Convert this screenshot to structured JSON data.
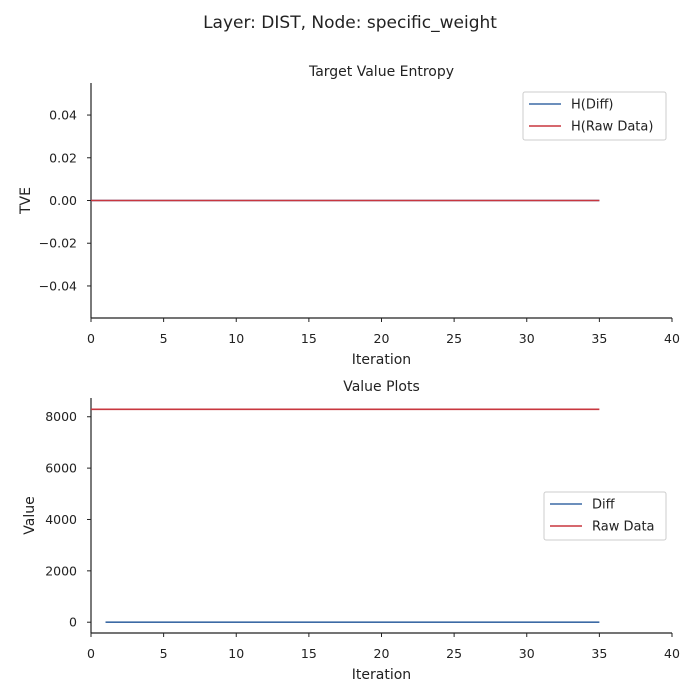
{
  "figure": {
    "suptitle": "Layer: DIST, Node: specific_weight"
  },
  "colors": {
    "diff": "#3c6aa5",
    "raw": "#c8373f",
    "axis": "#222222",
    "legend_border": "#cccccc"
  },
  "chart_data": [
    {
      "type": "line",
      "title": "Target Value Entropy",
      "xlabel": "Iteration",
      "ylabel": "TVE",
      "xlim": [
        0,
        40
      ],
      "ylim": [
        -0.055,
        0.055
      ],
      "xticks": [
        0,
        5,
        10,
        15,
        20,
        25,
        30,
        35,
        40
      ],
      "yticks": [
        -0.04,
        -0.02,
        0.0,
        0.02,
        0.04
      ],
      "ytick_labels": [
        "−0.04",
        "−0.02",
        "0.00",
        "0.02",
        "0.04"
      ],
      "grid": false,
      "legend": "top-right",
      "series": [
        {
          "name": "H(Diff)",
          "color_key": "diff",
          "x": [
            0,
            35
          ],
          "y": [
            0.0,
            0.0
          ]
        },
        {
          "name": "H(Raw Data)",
          "color_key": "raw",
          "x": [
            0,
            35
          ],
          "y": [
            0.0,
            0.0
          ]
        }
      ]
    },
    {
      "type": "line",
      "title": "Value Plots",
      "xlabel": "Iteration",
      "ylabel": "Value",
      "xlim": [
        0,
        40
      ],
      "ylim": [
        -420,
        8730
      ],
      "xticks": [
        0,
        5,
        10,
        15,
        20,
        25,
        30,
        35,
        40
      ],
      "yticks": [
        0,
        2000,
        4000,
        6000,
        8000
      ],
      "ytick_labels": [
        "0",
        "2000",
        "4000",
        "6000",
        "8000"
      ],
      "grid": false,
      "legend": "center-right",
      "series": [
        {
          "name": "Diff",
          "color_key": "diff",
          "x": [
            1,
            35
          ],
          "y": [
            0,
            0
          ]
        },
        {
          "name": "Raw Data",
          "color_key": "raw",
          "x": [
            0,
            35
          ],
          "y": [
            8290,
            8290
          ]
        }
      ]
    }
  ]
}
